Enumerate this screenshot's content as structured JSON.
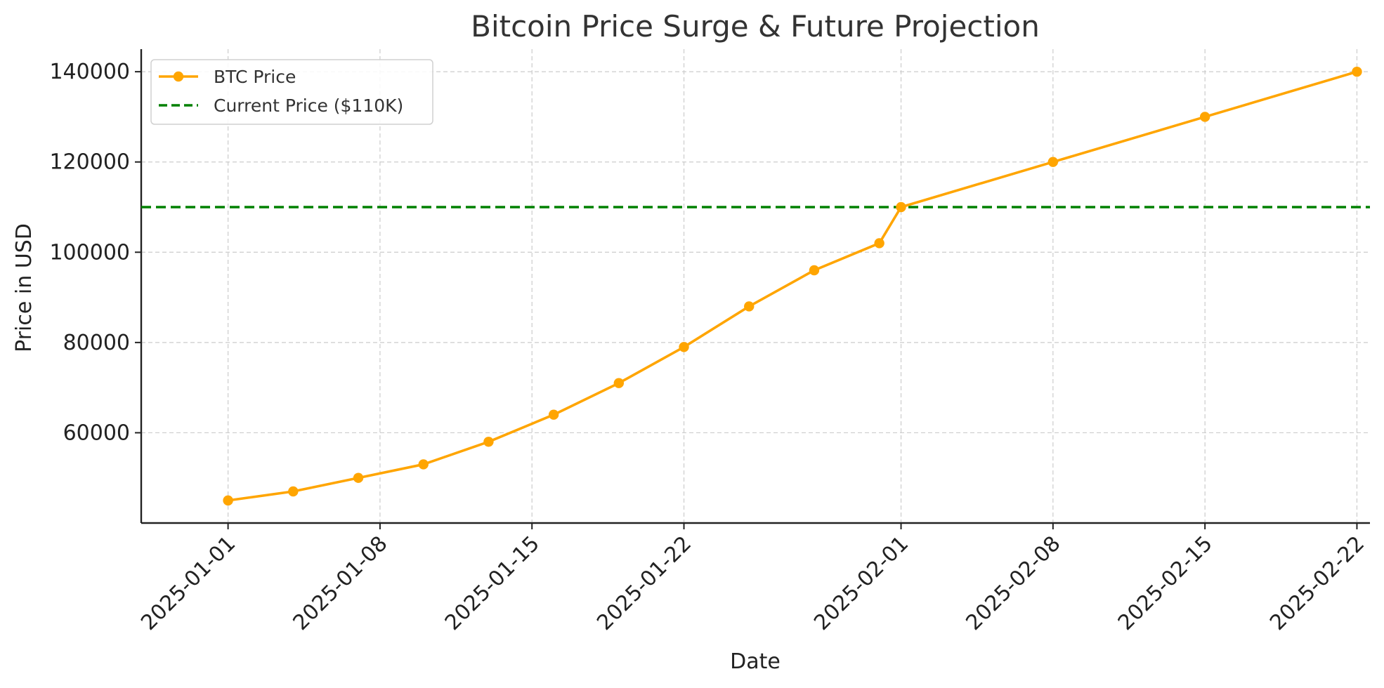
{
  "chart_data": {
    "type": "line",
    "title": "Bitcoin Price Surge & Future Projection",
    "xlabel": "Date",
    "ylabel": "Price in USD",
    "x_type": "date",
    "xlim": [
      "2024-12-28",
      "2025-02-22"
    ],
    "ylim": [
      40000,
      145000
    ],
    "x_ticks": [
      "2025-01-01",
      "2025-01-08",
      "2025-01-15",
      "2025-01-22",
      "2025-02-01",
      "2025-02-08",
      "2025-02-15",
      "2025-02-22"
    ],
    "y_ticks": [
      60000,
      80000,
      100000,
      120000,
      140000
    ],
    "grid": true,
    "legend_position": "top-left",
    "series": [
      {
        "name": "BTC Price",
        "color": "#ffa500",
        "marker": "circle",
        "x": [
          "2025-01-01",
          "2025-01-04",
          "2025-01-07",
          "2025-01-10",
          "2025-01-13",
          "2025-01-16",
          "2025-01-19",
          "2025-01-22",
          "2025-01-25",
          "2025-01-28",
          "2025-01-31",
          "2025-02-01",
          "2025-02-08",
          "2025-02-15",
          "2025-02-22"
        ],
        "y": [
          45000,
          47000,
          50000,
          53000,
          58000,
          64000,
          71000,
          79000,
          88000,
          96000,
          102000,
          110000,
          120000,
          130000,
          140000
        ]
      }
    ],
    "reference_lines": [
      {
        "name": "Current Price ($110K)",
        "y": 110000,
        "color": "#008000",
        "style": "dashed"
      }
    ]
  }
}
